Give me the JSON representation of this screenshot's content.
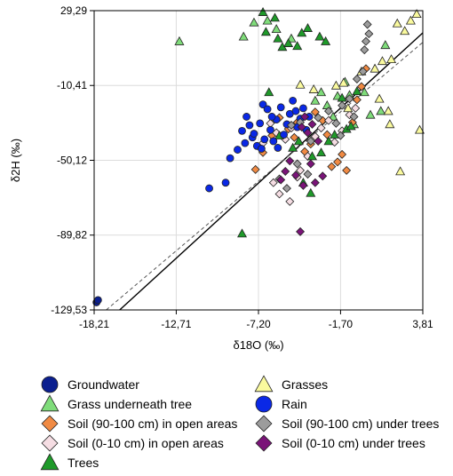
{
  "chart_data": {
    "type": "scatter",
    "title": "",
    "xlabel": "δ18O (‰)",
    "ylabel": "δ2H (‰)",
    "xlim": [
      -18.21,
      3.81
    ],
    "ylim": [
      -129.53,
      29.29
    ],
    "xticks": [
      -18.21,
      -12.71,
      -7.2,
      -1.7,
      3.81
    ],
    "xtick_labels": [
      "-18,21",
      "-12,71",
      "-7,20",
      "-1,70",
      "3,81"
    ],
    "yticks": [
      -129.53,
      -89.82,
      -50.12,
      -10.41,
      29.29
    ],
    "ytick_labels": [
      "-129,53",
      "-89,82",
      "-50,12",
      "-10,41",
      "29,29"
    ],
    "grid": true,
    "legend_position": "bottom",
    "lines": [
      {
        "style": "solid",
        "color": "#000000",
        "x": [
          -16.5,
          3.81
        ],
        "y": [
          -129.53,
          17.5
        ]
      },
      {
        "style": "dashed",
        "color": "#555555",
        "x": [
          -17.4,
          3.81
        ],
        "y": [
          -129.53,
          12.5
        ]
      }
    ],
    "series": [
      {
        "name": "Groundwater",
        "marker": "circle",
        "color": "#0b1f8f",
        "points": [
          [
            -18.05,
            -125.5
          ],
          [
            -17.95,
            -124.3
          ]
        ]
      },
      {
        "name": "Grass underneath tree",
        "marker": "triangle",
        "color": "#7fdc7a",
        "points": [
          [
            -12.5,
            13.0
          ],
          [
            -8.2,
            15.5
          ],
          [
            -7.5,
            23.0
          ],
          [
            -6.6,
            24.0
          ],
          [
            -6.0,
            19.5
          ],
          [
            -5.0,
            14.5
          ],
          [
            -3.4,
            -18.5
          ],
          [
            -3.0,
            -14.0
          ],
          [
            -2.6,
            -21.0
          ],
          [
            -2.2,
            -27.0
          ],
          [
            -1.9,
            -16.0
          ],
          [
            -1.4,
            -8.5
          ],
          [
            -1.1,
            -15.5
          ],
          [
            -0.8,
            -31.0
          ],
          [
            -0.1,
            -14.0
          ],
          [
            0.3,
            -26.0
          ],
          [
            1.0,
            -24.0
          ],
          [
            1.3,
            11.0
          ]
        ]
      },
      {
        "name": "Soil (90-100 cm) in open areas",
        "marker": "diamond",
        "color": "#f08a43",
        "points": [
          [
            -6.3,
            -37.0
          ],
          [
            -5.8,
            -27.5
          ],
          [
            -5.2,
            -33.5
          ],
          [
            -4.6,
            -30.0
          ],
          [
            -4.1,
            -45.5
          ],
          [
            -3.7,
            -41.5
          ],
          [
            -3.4,
            -24.5
          ],
          [
            -2.9,
            -29.0
          ],
          [
            -2.6,
            -36.5
          ],
          [
            -2.3,
            -53.5
          ],
          [
            -1.9,
            -51.0
          ],
          [
            -1.6,
            -47.0
          ],
          [
            -1.3,
            -55.5
          ],
          [
            -0.9,
            -30.0
          ],
          [
            -0.6,
            -18.0
          ],
          [
            -0.3,
            -11.0
          ],
          [
            0.0,
            -1.5
          ],
          [
            -7.4,
            -55.0
          ],
          [
            -6.9,
            -46.0
          ],
          [
            -4.8,
            -38.0
          ]
        ]
      },
      {
        "name": "Soil (0-10 cm) in open areas",
        "marker": "diamond",
        "color": "#f5dde3",
        "points": [
          [
            -6.9,
            -41.0
          ],
          [
            -6.4,
            -30.5
          ],
          [
            -6.0,
            -35.5
          ],
          [
            -5.4,
            -39.0
          ],
          [
            -5.0,
            -33.0
          ],
          [
            -4.4,
            -55.5
          ],
          [
            -3.9,
            -48.0
          ],
          [
            -3.4,
            -37.5
          ],
          [
            -3.0,
            -33.0
          ],
          [
            -2.5,
            -29.0
          ],
          [
            -2.1,
            -40.5
          ],
          [
            -1.6,
            -34.5
          ],
          [
            -1.1,
            -26.0
          ],
          [
            -0.7,
            -22.5
          ],
          [
            -6.2,
            -62.0
          ],
          [
            -5.8,
            -68.0
          ],
          [
            -5.1,
            -72.0
          ],
          [
            -4.6,
            -59.0
          ]
        ]
      },
      {
        "name": "Trees",
        "marker": "triangle",
        "color": "#1f9a2a",
        "points": [
          [
            -6.9,
            28.5
          ],
          [
            -6.7,
            18.0
          ],
          [
            -6.1,
            25.5
          ],
          [
            -5.9,
            14.5
          ],
          [
            -5.6,
            10.0
          ],
          [
            -5.2,
            12.0
          ],
          [
            -4.6,
            10.5
          ],
          [
            -4.3,
            17.5
          ],
          [
            -3.9,
            20.0
          ],
          [
            -3.1,
            15.5
          ],
          [
            -2.7,
            13.0
          ],
          [
            -6.5,
            -14.0
          ],
          [
            -5.8,
            -37.0
          ],
          [
            -4.9,
            -43.5
          ],
          [
            -4.5,
            -40.0
          ],
          [
            -3.6,
            -48.0
          ],
          [
            -3.0,
            -46.0
          ],
          [
            -2.5,
            -40.0
          ],
          [
            -2.1,
            -36.5
          ],
          [
            -1.6,
            -17.0
          ],
          [
            -1.3,
            -33.5
          ],
          [
            -1.0,
            -32.0
          ],
          [
            -4.2,
            -62.0
          ],
          [
            -3.7,
            -67.5
          ],
          [
            -8.3,
            -89.0
          ],
          [
            -0.6,
            -13.5
          ]
        ]
      },
      {
        "name": "Grasses",
        "marker": "triangle",
        "color": "#fafa9e",
        "points": [
          [
            -4.4,
            -10.0
          ],
          [
            -3.5,
            -12.5
          ],
          [
            -2.0,
            -10.5
          ],
          [
            -1.5,
            -9.0
          ],
          [
            -0.3,
            -3.0
          ],
          [
            0.6,
            -1.5
          ],
          [
            1.1,
            2.5
          ],
          [
            1.7,
            3.5
          ],
          [
            2.1,
            22.5
          ],
          [
            2.6,
            18.5
          ],
          [
            3.0,
            24.0
          ],
          [
            3.4,
            27.5
          ],
          [
            1.6,
            -31.0
          ],
          [
            3.6,
            -34.0
          ],
          [
            2.3,
            -56.0
          ],
          [
            -1.2,
            -22.5
          ],
          [
            0.9,
            -17.5
          ],
          [
            1.5,
            -24.0
          ]
        ]
      },
      {
        "name": "Rain",
        "marker": "circle",
        "color": "#0a28e6",
        "points": [
          [
            -10.5,
            -65.0
          ],
          [
            -9.4,
            -62.0
          ],
          [
            -9.1,
            -49.0
          ],
          [
            -8.6,
            -44.5
          ],
          [
            -8.3,
            -34.5
          ],
          [
            -8.0,
            -27.0
          ],
          [
            -7.8,
            -31.5
          ],
          [
            -7.6,
            -38.0
          ],
          [
            -7.3,
            -42.5
          ],
          [
            -7.1,
            -30.5
          ],
          [
            -6.9,
            -20.5
          ],
          [
            -6.6,
            -23.0
          ],
          [
            -6.4,
            -34.0
          ],
          [
            -6.2,
            -40.0
          ],
          [
            -6.0,
            -28.5
          ],
          [
            -5.7,
            -22.0
          ],
          [
            -5.5,
            -36.5
          ],
          [
            -5.3,
            -31.0
          ],
          [
            -5.1,
            -25.5
          ],
          [
            -4.9,
            -18.5
          ],
          [
            -4.6,
            -32.5
          ],
          [
            -4.4,
            -28.0
          ],
          [
            -4.2,
            -22.5
          ],
          [
            -4.0,
            -34.0
          ],
          [
            -3.8,
            -27.0
          ],
          [
            -7.0,
            -44.0
          ],
          [
            -6.8,
            -39.0
          ],
          [
            -6.3,
            -27.0
          ],
          [
            -5.9,
            -43.5
          ],
          [
            -8.1,
            -41.0
          ],
          [
            -7.5,
            -36.0
          ],
          [
            -4.7,
            -24.0
          ]
        ]
      },
      {
        "name": "Soil (90-100 cm) under trees",
        "marker": "diamond",
        "color": "#9c9c9c",
        "points": [
          [
            -5.0,
            -31.5
          ],
          [
            -4.4,
            -30.0
          ],
          [
            -3.7,
            -40.0
          ],
          [
            -3.2,
            -27.5
          ],
          [
            -2.5,
            -24.0
          ],
          [
            -2.0,
            -30.5
          ],
          [
            -1.6,
            -21.0
          ],
          [
            -1.1,
            -17.5
          ],
          [
            -0.6,
            -7.0
          ],
          [
            -0.2,
            -3.0
          ],
          [
            0.0,
            13.0
          ],
          [
            0.2,
            17.0
          ],
          [
            -0.1,
            8.5
          ],
          [
            0.1,
            22.0
          ],
          [
            -5.8,
            -60.0
          ],
          [
            -5.3,
            -65.0
          ],
          [
            -4.6,
            -52.0
          ],
          [
            -3.9,
            -57.5
          ],
          [
            -1.7,
            -37.0
          ],
          [
            -0.8,
            -27.0
          ]
        ]
      },
      {
        "name": "Soil (0-10 cm) under trees",
        "marker": "diamond",
        "color": "#7a1478",
        "points": [
          [
            -4.3,
            -32.5
          ],
          [
            -4.1,
            -27.0
          ],
          [
            -3.9,
            -35.5
          ],
          [
            -3.6,
            -31.0
          ],
          [
            -3.2,
            -40.0
          ],
          [
            -5.7,
            -60.5
          ],
          [
            -5.4,
            -56.0
          ],
          [
            -4.7,
            -58.0
          ],
          [
            -4.2,
            -63.5
          ],
          [
            -3.7,
            -52.0
          ],
          [
            -3.4,
            -62.0
          ],
          [
            -2.9,
            -58.5
          ],
          [
            -4.4,
            -88.0
          ],
          [
            -5.1,
            -50.5
          ]
        ]
      }
    ]
  }
}
